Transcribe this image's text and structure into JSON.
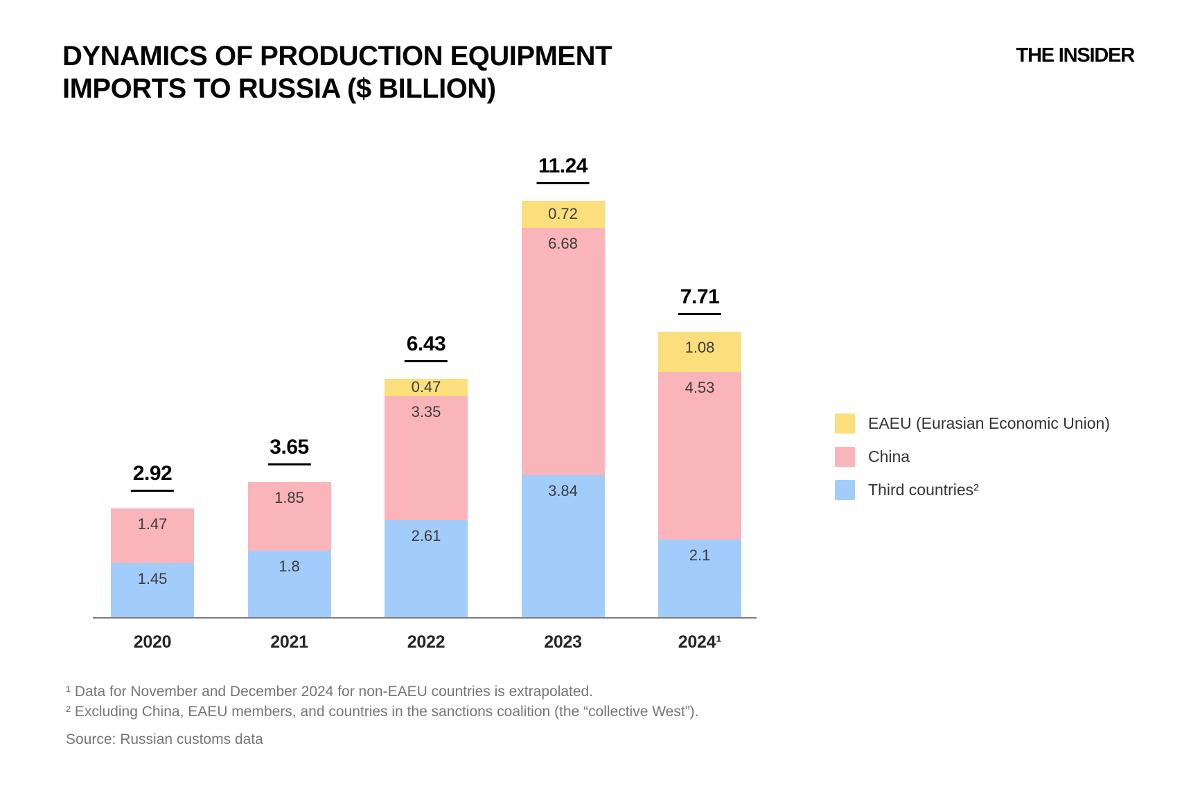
{
  "header": {
    "title_line1": "DYNAMICS OF PRODUCTION EQUIPMENT",
    "title_line2": "IMPORTS TO RUSSIA ($ BILLION)",
    "logo": "THE INSIDER"
  },
  "chart_data": {
    "type": "bar",
    "stacked": true,
    "title": "Dynamics of production equipment imports to Russia ($ billion)",
    "categories": [
      "2020",
      "2021",
      "2022",
      "2023",
      "2024¹"
    ],
    "series": [
      {
        "key": "third-countries",
        "name": "Third countries²",
        "color": "#A2CCFA",
        "values": [
          1.45,
          1.8,
          2.61,
          3.84,
          2.1
        ],
        "labels": [
          "1.45",
          "1.8",
          "2.61",
          "3.84",
          "2.1"
        ]
      },
      {
        "key": "china",
        "name": "China",
        "color": "#F9B5BA",
        "values": [
          1.47,
          1.85,
          3.35,
          6.68,
          4.53
        ],
        "labels": [
          "1.47",
          "1.85",
          "3.35",
          "6.68",
          "4.53"
        ]
      },
      {
        "key": "eaeu",
        "name": "EAEU (Eurasian Economic Union)",
        "color": "#FBDF7C",
        "values": [
          0,
          0,
          0.47,
          0.72,
          1.08
        ],
        "labels": [
          "",
          "",
          "0.47",
          "0.72",
          "1.08"
        ]
      }
    ],
    "totals": [
      "2.92",
      "3.65",
      "6.43",
      "11.24",
      "7.71"
    ],
    "ylim": [
      0,
      11.24
    ],
    "grid": false,
    "legend_position": "right",
    "axis_color": "#7B7B7B"
  },
  "legend": {
    "items": [
      {
        "label": "EAEU (Eurasian Economic Union)",
        "color": "#FBDF7C"
      },
      {
        "label": "China",
        "color": "#F9B5BA"
      },
      {
        "label": "Third countries²",
        "color": "#A2CCFA"
      }
    ]
  },
  "footnotes": {
    "line1": "¹ Data for November and December 2024 for non-EAEU countries is extrapolated.",
    "line2": "² Excluding China, EAEU members, and countries in the sanctions coalition (the “collective West”).",
    "source": "Source: Russian customs data"
  }
}
